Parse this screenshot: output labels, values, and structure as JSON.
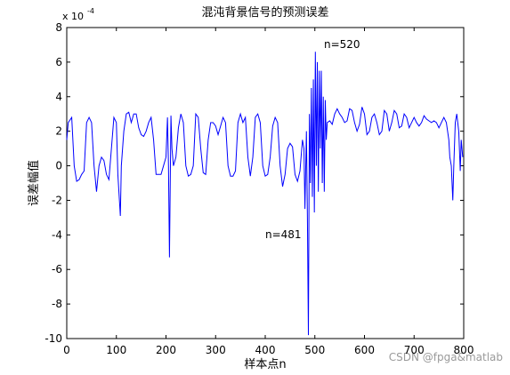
{
  "chart_data": {
    "type": "line",
    "title": "混沌背景信号的预测误差",
    "xlabel": "样本点n",
    "ylabel": "误差幅值",
    "y_multiplier": {
      "base": "x 10",
      "exponent": "-4"
    },
    "annotations": [
      "n=520",
      "n=481"
    ],
    "watermark": "CSDN @fpga&matlab",
    "color": "#0000ff",
    "xlim": [
      0,
      800
    ],
    "xticks": [
      0,
      100,
      200,
      300,
      400,
      500,
      600,
      700,
      800
    ],
    "ylim": [
      -10,
      8
    ],
    "yticks": [
      -10,
      -8,
      -6,
      -4,
      -2,
      0,
      2,
      4,
      6,
      8
    ],
    "x": [
      0,
      3,
      10,
      15,
      20,
      25,
      30,
      35,
      40,
      45,
      50,
      55,
      60,
      65,
      70,
      75,
      80,
      85,
      90,
      95,
      100,
      103,
      108,
      110,
      115,
      120,
      125,
      130,
      135,
      140,
      145,
      150,
      155,
      160,
      165,
      170,
      175,
      180,
      185,
      190,
      195,
      200,
      203,
      205,
      207,
      210,
      212,
      215,
      220,
      225,
      230,
      235,
      240,
      245,
      250,
      255,
      260,
      265,
      270,
      275,
      280,
      285,
      290,
      295,
      300,
      305,
      310,
      315,
      320,
      325,
      330,
      335,
      340,
      345,
      350,
      355,
      360,
      365,
      370,
      375,
      380,
      385,
      390,
      395,
      400,
      405,
      410,
      415,
      420,
      425,
      430,
      435,
      440,
      445,
      450,
      455,
      460,
      465,
      470,
      475,
      478,
      480,
      483,
      485,
      487,
      489,
      491,
      493,
      495,
      497,
      499,
      501,
      503,
      505,
      507,
      509,
      511,
      513,
      515,
      517,
      519,
      521,
      523,
      525,
      530,
      535,
      540,
      545,
      550,
      555,
      560,
      565,
      570,
      575,
      580,
      585,
      590,
      595,
      600,
      605,
      610,
      615,
      620,
      625,
      630,
      635,
      640,
      645,
      650,
      655,
      660,
      665,
      670,
      675,
      680,
      685,
      690,
      695,
      700,
      705,
      710,
      715,
      720,
      725,
      730,
      735,
      740,
      745,
      750,
      755,
      760,
      765,
      770,
      772,
      775,
      778,
      780,
      783,
      786,
      790,
      793,
      795,
      798
    ],
    "values": [
      1.5,
      2.5,
      2.8,
      0,
      -0.9,
      -0.8,
      -0.5,
      -0.3,
      2.5,
      2.8,
      2.5,
      0,
      -1.5,
      0,
      0.5,
      0.3,
      -0.5,
      -0.8,
      1,
      2.8,
      2.5,
      -0.5,
      -2.9,
      0,
      2,
      3,
      3.1,
      2.5,
      3,
      3,
      2.2,
      1.8,
      1.7,
      2,
      2.5,
      2.8,
      1.5,
      -0.5,
      -0.5,
      -0.5,
      0,
      0.5,
      2.8,
      0,
      -5.3,
      2.9,
      1,
      0,
      0.5,
      2.2,
      3,
      2.5,
      0,
      -0.6,
      -0.5,
      0,
      3,
      2.8,
      1,
      -0.4,
      -0.5,
      1.5,
      2.5,
      2.5,
      2.3,
      1.8,
      2.3,
      2.8,
      2.5,
      0,
      -0.6,
      -0.6,
      -0.3,
      2.5,
      3,
      2.5,
      2.8,
      0.5,
      -0.6,
      0.5,
      2.8,
      3,
      2.5,
      0,
      -0.6,
      -0.5,
      0.5,
      2.3,
      2.8,
      2.5,
      0,
      -1.2,
      -0.5,
      1,
      1.3,
      1.1,
      -0.5,
      -0.9,
      -0.3,
      1.5,
      1,
      -2.5,
      2,
      -3,
      -9.8,
      3,
      -1,
      4.5,
      -1.8,
      5,
      -2.7,
      6.6,
      0,
      6,
      -1.5,
      5.5,
      1,
      5.5,
      -1,
      4,
      -1.5,
      3.8,
      1.5,
      2.5,
      2.6,
      2.4,
      3,
      3.3,
      3,
      2.8,
      2.5,
      2.6,
      3.3,
      3.2,
      2.5,
      2,
      2.4,
      3.4,
      3,
      1.8,
      2,
      2.8,
      3,
      2.5,
      1.8,
      2,
      3.2,
      3,
      2,
      2.5,
      3.2,
      3,
      2.2,
      2.3,
      3,
      2.8,
      2.2,
      2.5,
      2.8,
      2.5,
      2.3,
      2.5,
      2.9,
      2.7,
      2.6,
      2.5,
      2.6,
      2.5,
      2.2,
      2.5,
      2.8,
      2.5,
      1.5,
      0.5,
      0,
      -2,
      0,
      2.5,
      3,
      2,
      -0.3,
      1.5,
      0.5
    ]
  }
}
